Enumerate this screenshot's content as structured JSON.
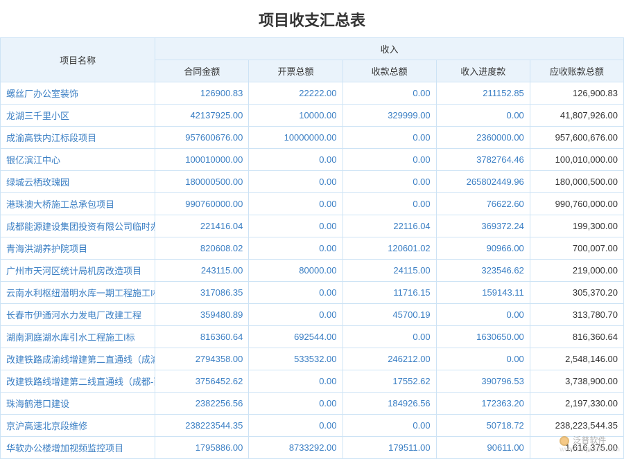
{
  "title": "项目收支汇总表",
  "header": {
    "project_name": "项目名称",
    "income_group": "收入",
    "cols": [
      "合同金额",
      "开票总额",
      "收款总额",
      "收入进度款",
      "应收账款总额"
    ]
  },
  "colors": {
    "border": "#cde3f5",
    "header_bg": "#eaf3fb",
    "link_text": "#3b7fc4",
    "text": "#333333",
    "background": "#ffffff"
  },
  "watermark": {
    "brand": "泛普软件",
    "site": "www.fanpusoft.com"
  },
  "rows": [
    {
      "name": "螺丝厂办公室装饰",
      "c0": "126900.83",
      "c1": "22222.00",
      "c2": "0.00",
      "c3": "211152.85",
      "c4": "126,900.83"
    },
    {
      "name": "龙湖三千里小区",
      "c0": "42137925.00",
      "c1": "10000.00",
      "c2": "329999.00",
      "c3": "0.00",
      "c4": "41,807,926.00"
    },
    {
      "name": "成渝高铁内江标段项目",
      "c0": "957600676.00",
      "c1": "10000000.00",
      "c2": "0.00",
      "c3": "2360000.00",
      "c4": "957,600,676.00"
    },
    {
      "name": "银亿滨江中心",
      "c0": "100010000.00",
      "c1": "0.00",
      "c2": "0.00",
      "c3": "3782764.46",
      "c4": "100,010,000.00"
    },
    {
      "name": "绿城云栖玫瑰园",
      "c0": "180000500.00",
      "c1": "0.00",
      "c2": "0.00",
      "c3": "265802449.96",
      "c4": "180,000,500.00"
    },
    {
      "name": "港珠澳大桥施工总承包项目",
      "c0": "990760000.00",
      "c1": "0.00",
      "c2": "0.00",
      "c3": "76622.60",
      "c4": "990,760,000.00"
    },
    {
      "name": "成都能源建设集团投资有限公司临时办公场所装修",
      "c0": "221416.04",
      "c1": "0.00",
      "c2": "22116.04",
      "c3": "369372.24",
      "c4": "199,300.00"
    },
    {
      "name": "青海洪湖养护院项目",
      "c0": "820608.02",
      "c1": "0.00",
      "c2": "120601.02",
      "c3": "90966.00",
      "c4": "700,007.00"
    },
    {
      "name": "广州市天河区统计局机房改造项目",
      "c0": "243115.00",
      "c1": "80000.00",
      "c2": "24115.00",
      "c3": "323546.62",
      "c4": "219,000.00"
    },
    {
      "name": "云南水利枢纽潜明水库一期工程施工I标",
      "c0": "317086.35",
      "c1": "0.00",
      "c2": "11716.15",
      "c3": "159143.11",
      "c4": "305,370.20"
    },
    {
      "name": "长春市伊通河水力发电厂改建工程",
      "c0": "359480.89",
      "c1": "0.00",
      "c2": "45700.19",
      "c3": "0.00",
      "c4": "313,780.70"
    },
    {
      "name": "湖南洞庭湖水库引水工程施工I标",
      "c0": "816360.64",
      "c1": "692544.00",
      "c2": "0.00",
      "c3": "1630650.00",
      "c4": "816,360.64"
    },
    {
      "name": "改建铁路成渝线增建第二直通线（成渝枢纽）电力",
      "c0": "2794358.00",
      "c1": "533532.00",
      "c2": "246212.00",
      "c3": "0.00",
      "c4": "2,548,146.00"
    },
    {
      "name": "改建铁路线增建第二线直通线（成都-西安）电力线",
      "c0": "3756452.62",
      "c1": "0.00",
      "c2": "17552.62",
      "c3": "390796.53",
      "c4": "3,738,900.00"
    },
    {
      "name": "珠海鹤港口建设",
      "c0": "2382256.56",
      "c1": "0.00",
      "c2": "184926.56",
      "c3": "172363.20",
      "c4": "2,197,330.00"
    },
    {
      "name": "京沪高速北京段维修",
      "c0": "238223544.35",
      "c1": "0.00",
      "c2": "0.00",
      "c3": "50718.72",
      "c4": "238,223,544.35"
    },
    {
      "name": "华软办公楼增加视频监控项目",
      "c0": "1795886.00",
      "c1": "8733292.00",
      "c2": "179511.00",
      "c3": "90611.00",
      "c4": "1,616,375.00"
    }
  ]
}
